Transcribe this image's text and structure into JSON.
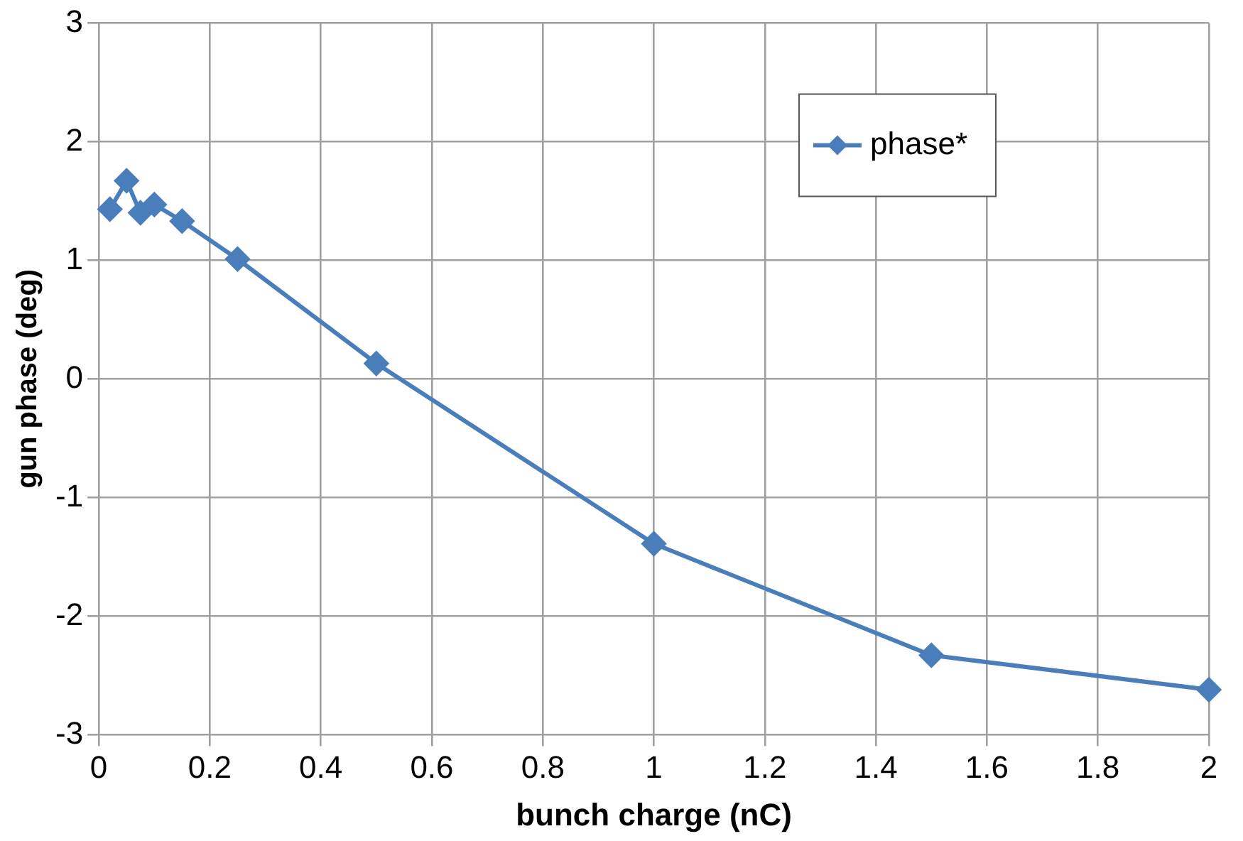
{
  "chart_data": {
    "type": "line",
    "xlabel": "bunch charge (nC)",
    "ylabel": "gun phase (deg)",
    "x": [
      0.02,
      0.05,
      0.075,
      0.1,
      0.15,
      0.25,
      0.5,
      1,
      1.5,
      2
    ],
    "series": [
      {
        "name": "phase*",
        "color": "#4a7ebb",
        "values": [
          1.43,
          1.67,
          1.4,
          1.47,
          1.33,
          1.01,
          0.13,
          -1.39,
          -2.33,
          -2.62
        ]
      }
    ],
    "xlim": [
      0,
      2
    ],
    "xticks": [
      0,
      0.2,
      0.4,
      0.6,
      0.8,
      1,
      1.2,
      1.4,
      1.6,
      1.8,
      2
    ],
    "ylim": [
      -3,
      3
    ],
    "yticks": [
      -3,
      -2,
      -1,
      0,
      1,
      2,
      3
    ],
    "grid": true,
    "legend": "top right",
    "marker": "diamond",
    "line_style": "solid"
  }
}
